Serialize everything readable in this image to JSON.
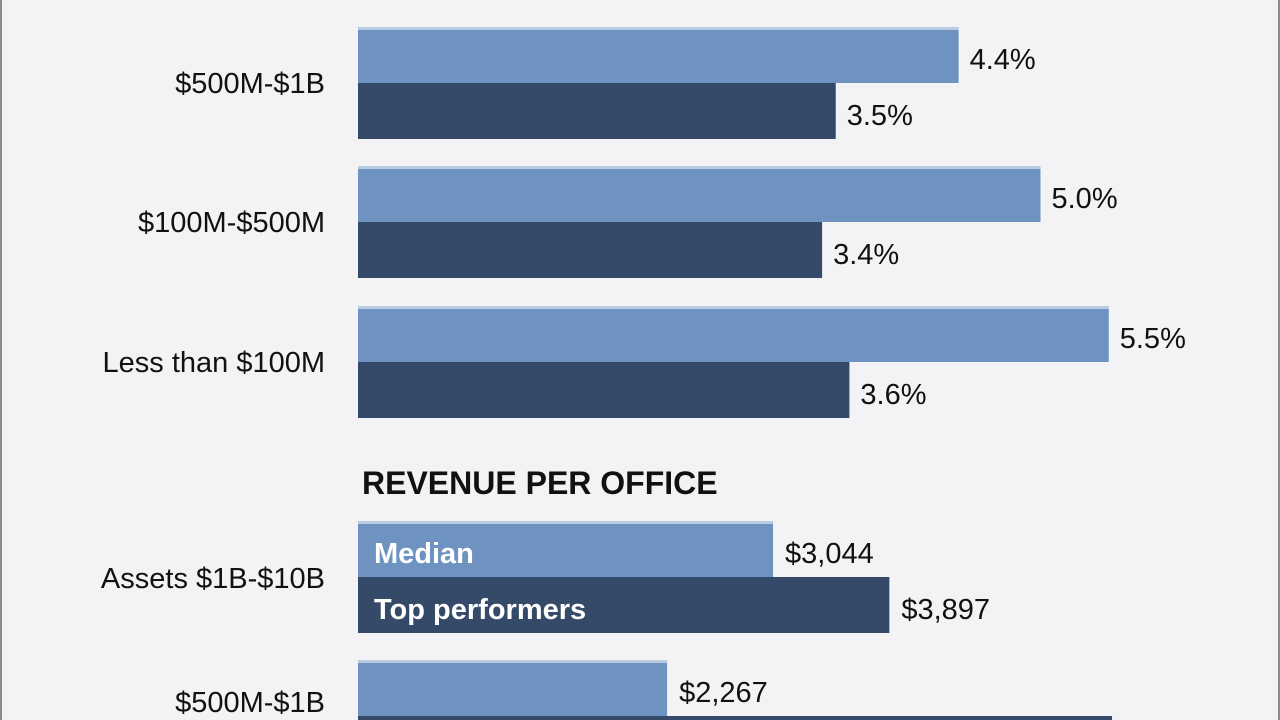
{
  "chart_data": [
    {
      "type": "bar",
      "orientation": "horizontal",
      "title": "",
      "categories": [
        "$500M-$1B",
        "$100M-$500M",
        "Less than $100M"
      ],
      "series": [
        {
          "values": [
            4.4,
            5.0,
            5.5
          ],
          "labels": [
            "4.4%",
            "5.0%",
            "5.5%"
          ],
          "color": "#6e93c0"
        },
        {
          "values": [
            3.5,
            3.4,
            3.6
          ],
          "labels": [
            "3.5%",
            "3.4%",
            "3.6%"
          ],
          "color": "#344a68"
        }
      ]
    },
    {
      "type": "bar",
      "orientation": "horizontal",
      "title": "REVENUE PER OFFICE",
      "categories": [
        "Assets $1B-$10B",
        "$500M-$1B"
      ],
      "series": [
        {
          "name": "Median",
          "values": [
            3044,
            2267
          ],
          "labels": [
            "$3,044",
            "$2,267"
          ],
          "color": "#6e93c0"
        },
        {
          "name": "Top performers",
          "values": [
            3897,
            5530
          ],
          "labels": [
            "$3,897",
            null
          ],
          "color": "#344a68"
        }
      ]
    }
  ]
}
